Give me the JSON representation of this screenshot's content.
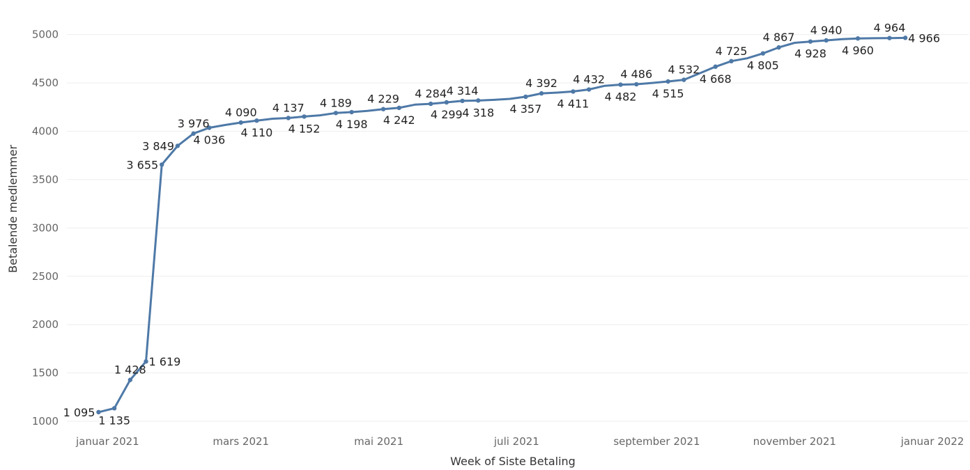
{
  "chart_data": {
    "type": "line",
    "title": "",
    "xlabel": "Week of Siste Betaling",
    "ylabel": "Betalende medlemmer",
    "ylim": [
      950,
      5300
    ],
    "xlim": [
      "2020-12-14",
      "2022-01-17"
    ],
    "grid": true,
    "y_ticks": [
      1000,
      1500,
      2000,
      2500,
      3000,
      3500,
      4000,
      4500,
      5000
    ],
    "x_ticks": [
      {
        "date": "2021-01-01",
        "label": "januar 2021"
      },
      {
        "date": "2021-03-01",
        "label": "mars 2021"
      },
      {
        "date": "2021-05-01",
        "label": "mai 2021"
      },
      {
        "date": "2021-07-01",
        "label": "juli 2021"
      },
      {
        "date": "2021-09-01",
        "label": "september 2021"
      },
      {
        "date": "2021-11-01",
        "label": "november 2021"
      },
      {
        "date": "2022-01-01",
        "label": "januar 2022"
      }
    ],
    "colors": {
      "series": "#4e79a7",
      "grid": "#eeeeee"
    },
    "series": [
      {
        "points": [
          {
            "x": "2020-12-28",
            "y": 1095,
            "label": "1 095",
            "pos": "left"
          },
          {
            "x": "2021-01-04",
            "y": 1135,
            "label": "1 135",
            "pos": "below"
          },
          {
            "x": "2021-01-11",
            "y": 1428,
            "label": "1 428",
            "pos": "above"
          },
          {
            "x": "2021-01-18",
            "y": 1619,
            "label": "1 619",
            "pos": "right"
          },
          {
            "x": "2021-01-25",
            "y": 3655,
            "label": "3 655",
            "pos": "left"
          },
          {
            "x": "2021-02-01",
            "y": 3849,
            "label": "3 849",
            "pos": "left"
          },
          {
            "x": "2021-02-08",
            "y": 3976,
            "label": "3 976",
            "pos": "above"
          },
          {
            "x": "2021-02-15",
            "y": 4036,
            "label": "4 036",
            "pos": "below"
          },
          {
            "x": "2021-02-22",
            "y": 4065
          },
          {
            "x": "2021-03-01",
            "y": 4090,
            "label": "4 090",
            "pos": "above"
          },
          {
            "x": "2021-03-08",
            "y": 4110,
            "label": "4 110",
            "pos": "below"
          },
          {
            "x": "2021-03-15",
            "y": 4130
          },
          {
            "x": "2021-03-22",
            "y": 4137,
            "label": "4 137",
            "pos": "above"
          },
          {
            "x": "2021-03-29",
            "y": 4152,
            "label": "4 152",
            "pos": "below"
          },
          {
            "x": "2021-04-05",
            "y": 4165
          },
          {
            "x": "2021-04-12",
            "y": 4189,
            "label": "4 189",
            "pos": "above"
          },
          {
            "x": "2021-04-19",
            "y": 4198,
            "label": "4 198",
            "pos": "below"
          },
          {
            "x": "2021-04-26",
            "y": 4210
          },
          {
            "x": "2021-05-03",
            "y": 4229,
            "label": "4 229",
            "pos": "above"
          },
          {
            "x": "2021-05-10",
            "y": 4242,
            "label": "4 242",
            "pos": "below"
          },
          {
            "x": "2021-05-17",
            "y": 4275
          },
          {
            "x": "2021-05-24",
            "y": 4284,
            "label": "4 284",
            "pos": "above"
          },
          {
            "x": "2021-05-31",
            "y": 4299,
            "label": "4 299",
            "pos": "below"
          },
          {
            "x": "2021-06-07",
            "y": 4314,
            "label": "4 314",
            "pos": "above"
          },
          {
            "x": "2021-06-14",
            "y": 4318,
            "label": "4 318",
            "pos": "below"
          },
          {
            "x": "2021-06-21",
            "y": 4325
          },
          {
            "x": "2021-06-28",
            "y": 4335
          },
          {
            "x": "2021-07-05",
            "y": 4357,
            "label": "4 357",
            "pos": "below"
          },
          {
            "x": "2021-07-12",
            "y": 4392,
            "label": "4 392",
            "pos": "above"
          },
          {
            "x": "2021-07-19",
            "y": 4400
          },
          {
            "x": "2021-07-26",
            "y": 4411,
            "label": "4 411",
            "pos": "below"
          },
          {
            "x": "2021-08-02",
            "y": 4432,
            "label": "4 432",
            "pos": "above"
          },
          {
            "x": "2021-08-09",
            "y": 4470
          },
          {
            "x": "2021-08-16",
            "y": 4482,
            "label": "4 482",
            "pos": "below"
          },
          {
            "x": "2021-08-23",
            "y": 4486,
            "label": "4 486",
            "pos": "above"
          },
          {
            "x": "2021-08-30",
            "y": 4500
          },
          {
            "x": "2021-09-06",
            "y": 4515,
            "label": "4 515",
            "pos": "below"
          },
          {
            "x": "2021-09-13",
            "y": 4532,
            "label": "4 532",
            "pos": "above"
          },
          {
            "x": "2021-09-20",
            "y": 4600
          },
          {
            "x": "2021-09-27",
            "y": 4668,
            "label": "4 668",
            "pos": "below"
          },
          {
            "x": "2021-10-04",
            "y": 4725,
            "label": "4 725",
            "pos": "above"
          },
          {
            "x": "2021-10-11",
            "y": 4755
          },
          {
            "x": "2021-10-18",
            "y": 4805,
            "label": "4 805",
            "pos": "below"
          },
          {
            "x": "2021-10-25",
            "y": 4867,
            "label": "4 867",
            "pos": "above"
          },
          {
            "x": "2021-11-01",
            "y": 4915
          },
          {
            "x": "2021-11-08",
            "y": 4928,
            "label": "4 928",
            "pos": "below"
          },
          {
            "x": "2021-11-15",
            "y": 4940,
            "label": "4 940",
            "pos": "above"
          },
          {
            "x": "2021-11-22",
            "y": 4952
          },
          {
            "x": "2021-11-29",
            "y": 4960,
            "label": "4 960",
            "pos": "below"
          },
          {
            "x": "2021-12-06",
            "y": 4962
          },
          {
            "x": "2021-12-13",
            "y": 4964,
            "label": "4 964",
            "pos": "above"
          },
          {
            "x": "2021-12-20",
            "y": 4966,
            "label": "4 966",
            "pos": "right"
          }
        ]
      }
    ]
  }
}
